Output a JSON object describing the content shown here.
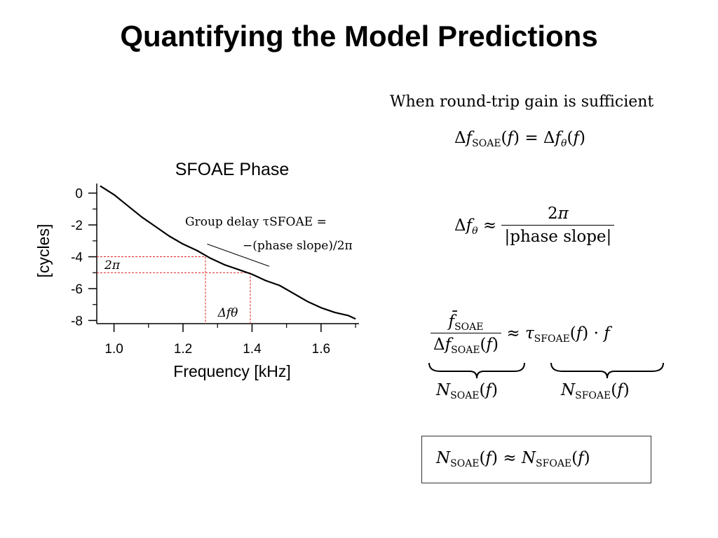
{
  "slide": {
    "title": "Quantifying the Model Predictions"
  },
  "chart_data": {
    "type": "line",
    "title": "SFOAE Phase",
    "xlabel": "Frequency [kHz]",
    "ylabel": "[cycles]",
    "xlim": [
      0.95,
      1.71
    ],
    "ylim": [
      -8.2,
      0.6
    ],
    "x_ticks": [
      "1.0",
      "1.2",
      "1.4",
      "1.6"
    ],
    "x_tick_values": [
      1.0,
      1.2,
      1.4,
      1.6
    ],
    "y_ticks": [
      "0",
      "-2",
      "-4",
      "-6",
      "-8"
    ],
    "y_tick_values": [
      0,
      -2,
      -4,
      -6,
      -8
    ],
    "grid": false,
    "series": [
      {
        "x": [
          0.96,
          1.0,
          1.04,
          1.08,
          1.12,
          1.16,
          1.2,
          1.24,
          1.28,
          1.32,
          1.36,
          1.4,
          1.44,
          1.48,
          1.52,
          1.56,
          1.6,
          1.64,
          1.68,
          1.7
        ],
        "y": [
          0.45,
          -0.1,
          -0.8,
          -1.5,
          -2.1,
          -2.7,
          -3.2,
          -3.6,
          -4.1,
          -4.5,
          -4.8,
          -5.1,
          -5.5,
          -5.8,
          -6.3,
          -6.8,
          -7.2,
          -7.5,
          -7.7,
          -7.9
        ]
      }
    ],
    "slope_line": {
      "x": [
        1.27,
        1.45
      ],
      "y": [
        -3.2,
        -4.6
      ]
    },
    "guides": {
      "y_levels": [
        -4.0,
        -5.0
      ],
      "x_levels": [
        1.265,
        1.395
      ],
      "y_label": "2π",
      "x_label": "Δfθ"
    },
    "annotation": {
      "line1": "Group delay τSFOAE =",
      "line2": "−(phase slope)/2π"
    }
  },
  "equations": {
    "intro": "When round-trip gain is sufficient",
    "eq1": "ΔfSOAE(f) = Δfθ(f)",
    "eq2_lhs": "Δfθ ≈",
    "eq2_num": "2π",
    "eq2_den": "|phase slope|",
    "eq3_num": "f̄SOAE",
    "eq3_den": "ΔfSOAE(f)",
    "eq3_rhs": "≈ τSFOAE(f) · f",
    "eq3_under_left": "NSOAE(f)",
    "eq3_under_right": "NSFOAE(f)",
    "boxed": "NSOAE(f) ≈ NSFOAE(f)"
  }
}
